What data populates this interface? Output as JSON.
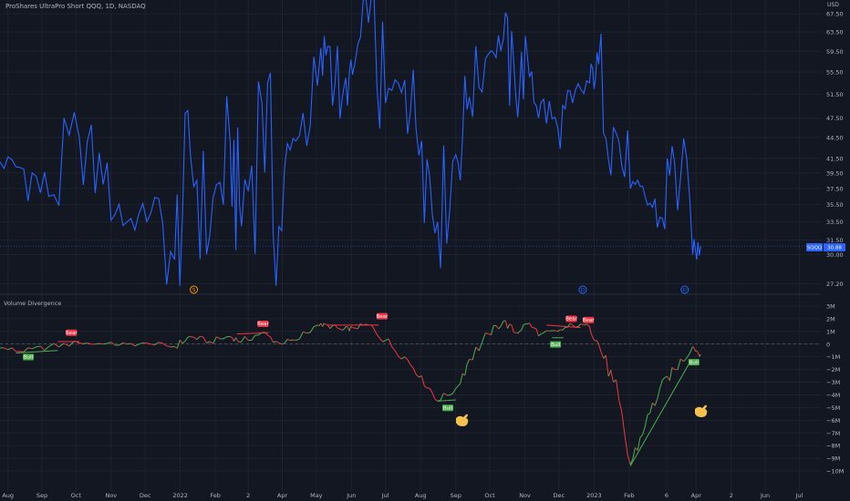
{
  "header": {
    "title": "ProShares UltraPro Short QQQ, 1D, NASDAQ",
    "currency": "USD"
  },
  "colors": {
    "background": "#131722",
    "price_line": "#2962ff",
    "bull": "#4caf50",
    "bear": "#f23645",
    "grid": "#1e222d",
    "text": "#b2b5be",
    "event_orange": "#ff9800"
  },
  "price_panel": {
    "y_ticks": [
      "67.50",
      "63.50",
      "59.50",
      "55.50",
      "51.50",
      "47.50",
      "44.50",
      "41.50",
      "39.50",
      "37.50",
      "35.50",
      "33.50",
      "31.50",
      "30.00",
      "27.20"
    ],
    "last_price_symbol": "SQQQ",
    "last_price_value": "30.88",
    "events": [
      {
        "kind": "dividend",
        "label": "S",
        "color": "#ff9800"
      },
      {
        "kind": "dividend",
        "label": "D",
        "color": "#2962ff"
      },
      {
        "kind": "dividend",
        "label": "D",
        "color": "#2962ff"
      }
    ]
  },
  "indicator_panel": {
    "title": "Volume Divergence",
    "y_ticks": [
      "3M",
      "2M",
      "1M",
      "0",
      "−1M",
      "−2M",
      "−3M",
      "−4M",
      "−5M",
      "−6M",
      "−7M",
      "−8M",
      "−9M",
      "−10M"
    ],
    "labels": [
      {
        "text": "Bull",
        "kind": "bull"
      },
      {
        "text": "Bear",
        "kind": "bear"
      },
      {
        "text": "Bear",
        "kind": "bear"
      },
      {
        "text": "Bear",
        "kind": "bear"
      },
      {
        "text": "Bull",
        "kind": "bull"
      },
      {
        "text": "Bull",
        "kind": "bull"
      },
      {
        "text": "Bear",
        "kind": "bear"
      },
      {
        "text": "Bear",
        "kind": "bear"
      },
      {
        "text": "Bull",
        "kind": "bull"
      }
    ]
  },
  "x_axis": {
    "ticks": [
      "Aug",
      "Sep",
      "Oct",
      "Nov",
      "Dec",
      "2022",
      "Feb",
      "2",
      "Apr",
      "May",
      "Jun",
      "Jul",
      "Aug",
      "Sep",
      "Oct",
      "Nov",
      "Dec",
      "2023",
      "Feb",
      "6",
      "Apr",
      "2",
      "Jun",
      "Jul"
    ]
  },
  "chart_data": [
    {
      "type": "line",
      "title": "ProShares UltraPro Short QQQ, 1D, NASDAQ",
      "xlabel": "",
      "ylabel": "USD",
      "x_range": [
        "2021-07-26",
        "2023-07-20"
      ],
      "ylim": [
        26.5,
        69
      ],
      "y_scale": "log",
      "series": [
        {
          "name": "SQQQ",
          "x": [
            "2021-07-26",
            "2021-08-16",
            "2021-09-07",
            "2021-10-04",
            "2021-10-25",
            "2021-11-15",
            "2021-12-06",
            "2021-12-27",
            "2022-01-10",
            "2022-01-27",
            "2022-02-14",
            "2022-02-24",
            "2022-03-14",
            "2022-03-29",
            "2022-04-13",
            "2022-05-02",
            "2022-05-11",
            "2022-05-24",
            "2022-06-02",
            "2022-06-16",
            "2022-07-01",
            "2022-07-18",
            "2022-08-02",
            "2022-08-16",
            "2022-09-01",
            "2022-09-13",
            "2022-09-30",
            "2022-10-13",
            "2022-10-24",
            "2022-11-03",
            "2022-11-15",
            "2022-11-30",
            "2022-12-13",
            "2022-12-28",
            "2023-01-05",
            "2023-01-18",
            "2023-02-02",
            "2023-02-15",
            "2023-02-28",
            "2023-03-13",
            "2023-03-29",
            "2023-04-05"
          ],
          "values": [
            41.0,
            40.0,
            36.5,
            44.5,
            38.0,
            33.5,
            34.5,
            29.5,
            42.0,
            32.0,
            44.0,
            33.0,
            50.0,
            33.0,
            44.0,
            53.0,
            60.5,
            51.0,
            55.0,
            65.5,
            50.0,
            54.0,
            44.0,
            33.5,
            42.0,
            51.0,
            59.0,
            62.0,
            51.0,
            59.0,
            50.0,
            46.0,
            50.0,
            53.5,
            57.0,
            46.0,
            37.5,
            36.5,
            34.0,
            41.0,
            30.0,
            30.9
          ]
        }
      ]
    },
    {
      "type": "line",
      "title": "Volume Divergence",
      "xlabel": "",
      "ylabel": "",
      "x_range": [
        "2021-07-26",
        "2023-07-20"
      ],
      "ylim": [
        -10.5,
        3.5
      ],
      "y_unit": "M",
      "series": [
        {
          "x": [
            "2021-07-26",
            "2021-08-16",
            "2021-09-07",
            "2021-10-04",
            "2021-10-25",
            "2021-11-15",
            "2021-12-06",
            "2021-12-27",
            "2022-01-10",
            "2022-01-27",
            "2022-02-14",
            "2022-02-24",
            "2022-03-14",
            "2022-03-29",
            "2022-04-13",
            "2022-05-02",
            "2022-05-11",
            "2022-05-24",
            "2022-06-02",
            "2022-06-16",
            "2022-07-01",
            "2022-07-18",
            "2022-08-02",
            "2022-08-16",
            "2022-09-01",
            "2022-09-13",
            "2022-09-30",
            "2022-10-13",
            "2022-10-24",
            "2022-11-03",
            "2022-11-15",
            "2022-11-30",
            "2022-12-13",
            "2022-12-28",
            "2023-01-05",
            "2023-01-18",
            "2023-02-02",
            "2023-02-15",
            "2023-02-28",
            "2023-03-13",
            "2023-03-29",
            "2023-04-05"
          ],
          "values": [
            -0.3,
            -0.6,
            -0.2,
            0.1,
            0.0,
            0.0,
            0.0,
            -0.2,
            0.6,
            0.2,
            0.6,
            0.2,
            0.9,
            0.1,
            0.3,
            1.5,
            1.5,
            1.1,
            1.3,
            1.5,
            0.3,
            -1.0,
            -2.5,
            -4.5,
            -3.5,
            -1.2,
            0.8,
            1.8,
            0.9,
            1.6,
            0.8,
            1.0,
            1.5,
            1.4,
            0.0,
            -3.0,
            -9.5,
            -6.5,
            -3.5,
            -2.0,
            -0.2,
            -0.8
          ]
        }
      ]
    }
  ]
}
